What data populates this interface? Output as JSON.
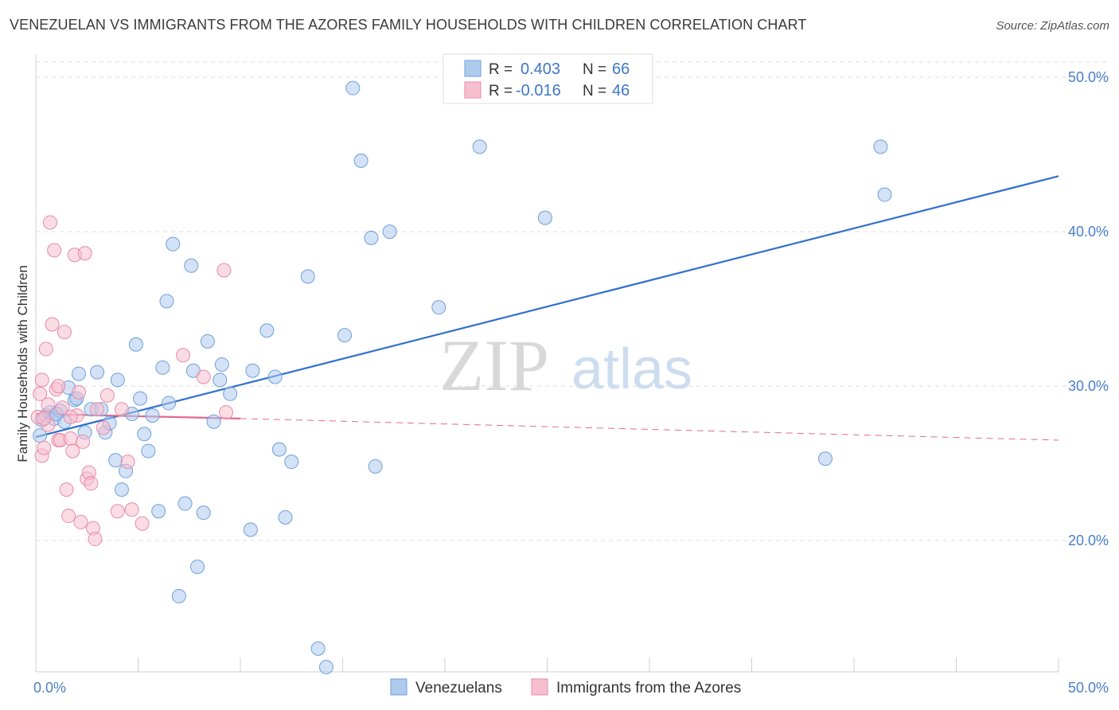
{
  "header": {
    "title": "VENEZUELAN VS IMMIGRANTS FROM THE AZORES FAMILY HOUSEHOLDS WITH CHILDREN CORRELATION CHART",
    "source": "Source: ZipAtlas.com"
  },
  "legend": {
    "rows": [
      {
        "r_label": "R =",
        "r_value": "0.403",
        "n_label": "N =",
        "n_value": "66"
      },
      {
        "r_label": "R =",
        "r_value": "-0.016",
        "n_label": "N =",
        "n_value": "46"
      }
    ]
  },
  "watermark": {
    "zip": "ZIP",
    "atlas": "atlas"
  },
  "colors": {
    "blue_fill": "#aecbee",
    "blue_stroke": "#6f9fd8",
    "blue_line": "#2f6fcf",
    "pink_fill": "#f6bfd0",
    "pink_stroke": "#e88aa8",
    "pink_line": "#e06a93",
    "grid": "#dddddd",
    "tick_text": "#4a7fc9"
  },
  "chart_data": {
    "type": "scatter",
    "title": "VENEZUELAN VS IMMIGRANTS FROM THE AZORES FAMILY HOUSEHOLDS WITH CHILDREN CORRELATION CHART",
    "xlabel": "",
    "ylabel": "Family Households with Children",
    "xlim": [
      0,
      50
    ],
    "ylim": [
      11.5,
      51.5
    ],
    "x_tick_labels": [
      "0.0%",
      "50.0%"
    ],
    "y_ticks": [
      20,
      30,
      40,
      50
    ],
    "y_tick_labels": [
      "20.0%",
      "30.0%",
      "40.0%",
      "50.0%"
    ],
    "grid": true,
    "series": [
      {
        "name": "Venezuelans",
        "color": "#aecbee",
        "points": [
          [
            0.3,
            27.8
          ],
          [
            0.5,
            28.1
          ],
          [
            0.7,
            28.3
          ],
          [
            0.9,
            27.9
          ],
          [
            1.2,
            28.4
          ],
          [
            1.4,
            27.7
          ],
          [
            1.6,
            29.9
          ],
          [
            1.9,
            29.1
          ],
          [
            2.0,
            29.2
          ],
          [
            2.1,
            30.8
          ],
          [
            2.4,
            27.0
          ],
          [
            2.7,
            28.5
          ],
          [
            3.0,
            30.9
          ],
          [
            3.2,
            28.5
          ],
          [
            3.4,
            27.0
          ],
          [
            3.6,
            27.6
          ],
          [
            3.9,
            25.2
          ],
          [
            4.0,
            30.4
          ],
          [
            4.2,
            23.3
          ],
          [
            4.4,
            24.5
          ],
          [
            4.7,
            28.2
          ],
          [
            4.9,
            32.7
          ],
          [
            5.1,
            29.2
          ],
          [
            5.3,
            26.9
          ],
          [
            5.5,
            25.8
          ],
          [
            5.7,
            28.1
          ],
          [
            6.0,
            21.9
          ],
          [
            6.2,
            31.2
          ],
          [
            6.4,
            35.5
          ],
          [
            6.5,
            28.9
          ],
          [
            6.7,
            39.2
          ],
          [
            7.0,
            16.4
          ],
          [
            7.3,
            22.4
          ],
          [
            7.6,
            37.8
          ],
          [
            7.7,
            31.0
          ],
          [
            7.9,
            18.3
          ],
          [
            8.2,
            21.8
          ],
          [
            8.4,
            32.9
          ],
          [
            8.7,
            27.7
          ],
          [
            9.0,
            30.4
          ],
          [
            9.1,
            31.4
          ],
          [
            9.5,
            29.5
          ],
          [
            10.5,
            20.7
          ],
          [
            10.6,
            31.0
          ],
          [
            11.3,
            33.6
          ],
          [
            11.7,
            30.6
          ],
          [
            11.9,
            25.9
          ],
          [
            12.2,
            21.5
          ],
          [
            12.5,
            25.1
          ],
          [
            13.3,
            37.1
          ],
          [
            13.8,
            13.0
          ],
          [
            14.2,
            11.8
          ],
          [
            15.1,
            33.3
          ],
          [
            15.5,
            49.3
          ],
          [
            15.9,
            44.6
          ],
          [
            16.4,
            39.6
          ],
          [
            16.6,
            24.8
          ],
          [
            17.3,
            40.0
          ],
          [
            19.7,
            35.1
          ],
          [
            21.7,
            45.5
          ],
          [
            24.9,
            40.9
          ],
          [
            38.6,
            25.3
          ],
          [
            41.3,
            45.5
          ],
          [
            41.5,
            42.4
          ],
          [
            0.2,
            26.8
          ],
          [
            1.0,
            28.2
          ]
        ]
      },
      {
        "name": "Immigrants from the Azores",
        "color": "#f6bfd0",
        "points": [
          [
            0.1,
            28.0
          ],
          [
            0.2,
            29.5
          ],
          [
            0.3,
            30.4
          ],
          [
            0.3,
            25.5
          ],
          [
            0.4,
            26.0
          ],
          [
            0.5,
            32.4
          ],
          [
            0.6,
            28.8
          ],
          [
            0.7,
            40.6
          ],
          [
            0.8,
            34.0
          ],
          [
            0.9,
            38.8
          ],
          [
            1.0,
            29.8
          ],
          [
            1.1,
            26.5
          ],
          [
            1.2,
            26.5
          ],
          [
            1.3,
            28.6
          ],
          [
            1.4,
            33.5
          ],
          [
            1.5,
            23.3
          ],
          [
            1.6,
            21.6
          ],
          [
            1.7,
            26.6
          ],
          [
            1.8,
            25.8
          ],
          [
            1.9,
            38.5
          ],
          [
            2.0,
            28.1
          ],
          [
            2.1,
            29.6
          ],
          [
            2.2,
            21.2
          ],
          [
            2.4,
            38.6
          ],
          [
            2.5,
            24.0
          ],
          [
            2.6,
            24.4
          ],
          [
            2.7,
            23.7
          ],
          [
            2.8,
            20.8
          ],
          [
            2.9,
            20.1
          ],
          [
            3.0,
            28.5
          ],
          [
            3.3,
            27.3
          ],
          [
            3.5,
            29.4
          ],
          [
            4.0,
            21.9
          ],
          [
            4.2,
            28.5
          ],
          [
            4.5,
            25.1
          ],
          [
            4.7,
            22.0
          ],
          [
            5.2,
            21.1
          ],
          [
            7.2,
            32.0
          ],
          [
            8.2,
            30.6
          ],
          [
            9.2,
            37.5
          ],
          [
            9.3,
            28.3
          ],
          [
            0.6,
            27.5
          ],
          [
            1.1,
            30.0
          ],
          [
            0.4,
            27.9
          ],
          [
            2.3,
            26.4
          ],
          [
            1.7,
            28.0
          ]
        ]
      }
    ],
    "trend_lines": [
      {
        "series": "Venezuelans",
        "x": [
          0.0,
          50.0
        ],
        "y": [
          26.7,
          43.6
        ],
        "style": "solid"
      },
      {
        "series": "Immigrants from the Azores",
        "x": [
          0.0,
          10.0
        ],
        "y": [
          28.2,
          27.9
        ],
        "style": "solid"
      },
      {
        "series": "Immigrants from the Azores",
        "x": [
          10.0,
          50.0
        ],
        "y": [
          27.9,
          26.5
        ],
        "style": "dashed"
      }
    ]
  }
}
